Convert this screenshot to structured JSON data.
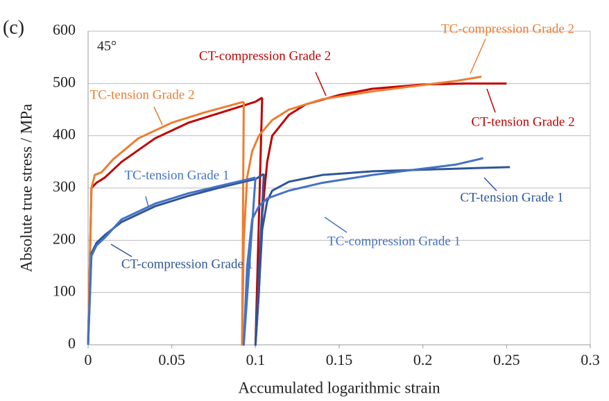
{
  "chart_data": {
    "type": "line",
    "panel_label": "(c)",
    "annotation": "45°",
    "xlabel": "Accumulated logarithmic strain",
    "ylabel": "Absolute true stress / MPa",
    "xlim": [
      0,
      0.3
    ],
    "ylim": [
      0,
      600
    ],
    "xticks": [
      0,
      0.05,
      0.1,
      0.15,
      0.2,
      0.25,
      0.3
    ],
    "yticks": [
      0,
      100,
      200,
      300,
      400,
      500,
      600
    ],
    "grid": true,
    "series": [
      {
        "name": "CT-compression Grade 2",
        "color": "#c00000",
        "x": [
          0,
          0.002,
          0.005,
          0.01,
          0.02,
          0.04,
          0.06,
          0.08,
          0.1,
          0.104
        ],
        "values": [
          0,
          300,
          310,
          320,
          350,
          395,
          425,
          445,
          465,
          473
        ]
      },
      {
        "name": "CT-tension Grade 2",
        "color": "#c00000",
        "x": [
          0.104,
          0.1,
          0.102,
          0.104,
          0.107,
          0.11,
          0.12,
          0.13,
          0.15,
          0.17,
          0.2,
          0.225,
          0.25
        ],
        "values": [
          473,
          0,
          100,
          250,
          350,
          400,
          440,
          460,
          478,
          490,
          498,
          500,
          500
        ]
      },
      {
        "name": "TC-tension Grade 2",
        "color": "#ed7d31",
        "x": [
          0,
          0.002,
          0.004,
          0.008,
          0.015,
          0.03,
          0.05,
          0.07,
          0.093
        ],
        "values": [
          0,
          300,
          325,
          330,
          355,
          395,
          425,
          445,
          465
        ]
      },
      {
        "name": "TC-compression Grade 2",
        "color": "#ed7d31",
        "x": [
          0.093,
          0.092,
          0.093,
          0.095,
          0.098,
          0.102,
          0.11,
          0.12,
          0.14,
          0.17,
          0.2,
          0.22,
          0.235
        ],
        "values": [
          465,
          0,
          200,
          320,
          370,
          400,
          430,
          450,
          470,
          485,
          497,
          505,
          513
        ]
      },
      {
        "name": "CT-compression Grade 1",
        "color": "#2f5597",
        "x": [
          0,
          0.002,
          0.005,
          0.01,
          0.02,
          0.04,
          0.06,
          0.08,
          0.1,
          0.105
        ],
        "values": [
          0,
          175,
          195,
          210,
          235,
          265,
          285,
          302,
          317,
          327
        ]
      },
      {
        "name": "CT-tension Grade 1",
        "color": "#2f5597",
        "x": [
          0.105,
          0.1,
          0.102,
          0.104,
          0.107,
          0.11,
          0.12,
          0.14,
          0.17,
          0.2,
          0.23,
          0.252
        ],
        "values": [
          327,
          0,
          100,
          220,
          275,
          295,
          312,
          325,
          332,
          335,
          338,
          340
        ]
      },
      {
        "name": "TC-tension Grade 1",
        "color": "#4472c4",
        "x": [
          0,
          0.002,
          0.005,
          0.01,
          0.02,
          0.04,
          0.06,
          0.08,
          0.1
        ],
        "values": [
          0,
          170,
          190,
          205,
          240,
          270,
          290,
          305,
          320
        ]
      },
      {
        "name": "TC-compression Grade 1",
        "color": "#4472c4",
        "x": [
          0.1,
          0.093,
          0.095,
          0.098,
          0.102,
          0.107,
          0.12,
          0.14,
          0.17,
          0.2,
          0.22,
          0.236
        ],
        "values": [
          320,
          0,
          150,
          240,
          265,
          280,
          295,
          310,
          325,
          337,
          345,
          357
        ]
      }
    ]
  }
}
